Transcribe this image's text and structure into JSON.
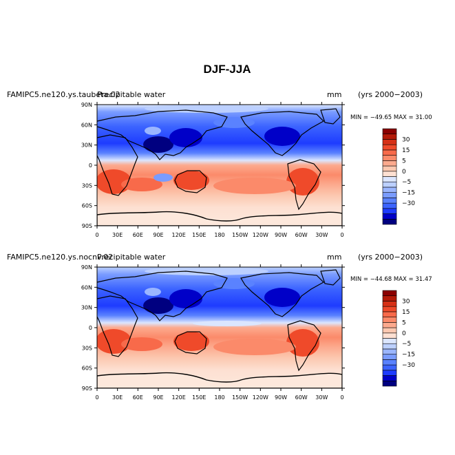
{
  "title": "DJF-JJA",
  "colorbar": {
    "colors": [
      "#000080",
      "#0000c8",
      "#1e3cff",
      "#3c64ff",
      "#5a82ff",
      "#7a9cff",
      "#9bb6ff",
      "#bcd0ff",
      "#dbe6ff",
      "#fde0d2",
      "#fcc8b0",
      "#fcaa8e",
      "#fb8a6a",
      "#f86a4a",
      "#ef4a2a",
      "#d63016",
      "#b41a08",
      "#8b0000"
    ],
    "labels": [
      {
        "text": "30",
        "index": 16
      },
      {
        "text": "15",
        "index": 14
      },
      {
        "text": "5",
        "index": 12
      },
      {
        "text": "0",
        "index": 10
      },
      {
        "text": "−5",
        "index": 8
      },
      {
        "text": "−15",
        "index": 6
      },
      {
        "text": "−30",
        "index": 4
      }
    ]
  },
  "palette": {
    "ocean_south": "#fcd9c5",
    "land_outline": "#000000"
  },
  "chart_data": [
    {
      "type": "heatmap",
      "case_label": "FAMIPC5.ne120.ys.taubeta.02",
      "variable": "Precipitable water",
      "units": "mm",
      "years": "(yrs 2000−2003)",
      "stats": "MIN = −49.65 MAX =  31.00",
      "min": -49.65,
      "max": 31.0,
      "xlabels": [
        "0",
        "30E",
        "60E",
        "90E",
        "120E",
        "150E",
        "180",
        "150W",
        "120W",
        "90W",
        "60W",
        "30W",
        "0"
      ],
      "ylabels": [
        "90N",
        "60N",
        "30N",
        "0",
        "30S",
        "60S",
        "90S"
      ],
      "xlim": [
        0,
        360
      ],
      "ylim": [
        -90,
        90
      ]
    },
    {
      "type": "heatmap",
      "case_label": "FAMIPC5.ne120.ys.nocnv.02",
      "variable": "Precipitable water",
      "units": "mm",
      "years": "(yrs 2000−2003)",
      "stats": "MIN = −44.68 MAX =  31.47",
      "min": -44.68,
      "max": 31.47,
      "xlabels": [
        "0",
        "30E",
        "60E",
        "90E",
        "120E",
        "150E",
        "180",
        "150W",
        "120W",
        "90W",
        "60W",
        "30W",
        "0"
      ],
      "ylabels": [
        "90N",
        "60N",
        "30N",
        "0",
        "30S",
        "60S",
        "90S"
      ],
      "xlim": [
        0,
        360
      ],
      "ylim": [
        -90,
        90
      ]
    }
  ]
}
